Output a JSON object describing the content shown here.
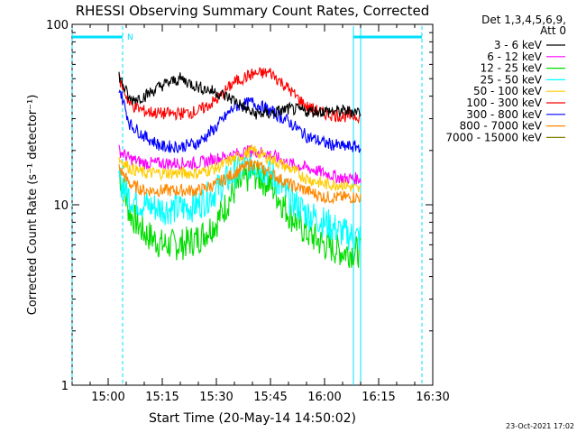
{
  "chart_data": {
    "type": "line",
    "title": "RHESSI Observing Summary Count Rates, Corrected",
    "xlabel": "Start Time (20-May-14 14:50:02)",
    "ylabel": "Corrected Count Rate (s⁻¹ detector⁻¹)",
    "xlim": [
      "14:50",
      "16:30"
    ],
    "ylim": [
      1,
      100
    ],
    "yscale": "log",
    "x_ticks": [
      "15:00",
      "15:15",
      "15:30",
      "15:45",
      "16:00",
      "16:15",
      "16:30"
    ],
    "y_ticks": [
      "1",
      "10",
      "100"
    ],
    "legend_header": [
      "Det 1,3,4,5,6,9,",
      "Att 0"
    ],
    "legend_position": "top-right",
    "timestamp": "23-Oct-2021 17:02",
    "annotations": [
      {
        "type": "night",
        "label": "N",
        "from": "14:50",
        "to": "15:04",
        "color": "#00e0ff"
      },
      {
        "type": "night",
        "label": "",
        "from": "16:08",
        "to": "16:27",
        "color": "#00e0ff"
      }
    ],
    "data_interval": [
      "15:03",
      "16:11"
    ],
    "series": [
      {
        "name": "3 - 6 keV",
        "color": "#000000",
        "points": [
          [
            "15:03",
            52
          ],
          [
            "15:06",
            38
          ],
          [
            "15:10",
            40
          ],
          [
            "15:15",
            46
          ],
          [
            "15:20",
            50
          ],
          [
            "15:25",
            45
          ],
          [
            "15:30",
            42
          ],
          [
            "15:35",
            38
          ],
          [
            "15:40",
            32
          ],
          [
            "15:45",
            32
          ],
          [
            "15:50",
            34
          ],
          [
            "15:55",
            33
          ],
          [
            "16:00",
            33
          ],
          [
            "16:05",
            33
          ],
          [
            "16:10",
            33
          ]
        ]
      },
      {
        "name": "6 - 12 keV",
        "color": "#ff00ff",
        "points": [
          [
            "15:03",
            20
          ],
          [
            "15:06",
            18
          ],
          [
            "15:10",
            17
          ],
          [
            "15:15",
            17
          ],
          [
            "15:20",
            17
          ],
          [
            "15:25",
            17
          ],
          [
            "15:30",
            18
          ],
          [
            "15:35",
            19
          ],
          [
            "15:40",
            20
          ],
          [
            "15:45",
            19
          ],
          [
            "15:50",
            17
          ],
          [
            "15:55",
            16
          ],
          [
            "16:00",
            15
          ],
          [
            "16:05",
            14
          ],
          [
            "16:10",
            14
          ]
        ]
      },
      {
        "name": "12 - 25 keV",
        "color": "#00dd00",
        "points": [
          [
            "15:03",
            15
          ],
          [
            "15:06",
            9
          ],
          [
            "15:10",
            7
          ],
          [
            "15:15",
            6
          ],
          [
            "15:20",
            6
          ],
          [
            "15:25",
            6.5
          ],
          [
            "15:30",
            8
          ],
          [
            "15:35",
            12
          ],
          [
            "15:40",
            15
          ],
          [
            "15:45",
            13
          ],
          [
            "15:50",
            9
          ],
          [
            "15:55",
            7
          ],
          [
            "16:00",
            6
          ],
          [
            "16:05",
            5.5
          ],
          [
            "16:10",
            5.5
          ]
        ]
      },
      {
        "name": "25 - 50 keV",
        "color": "#00ffff",
        "points": [
          [
            "15:03",
            14
          ],
          [
            "15:06",
            11
          ],
          [
            "15:10",
            10
          ],
          [
            "15:15",
            9.5
          ],
          [
            "15:20",
            9.5
          ],
          [
            "15:25",
            10
          ],
          [
            "15:30",
            12
          ],
          [
            "15:35",
            15
          ],
          [
            "15:40",
            17
          ],
          [
            "15:45",
            15
          ],
          [
            "15:50",
            11
          ],
          [
            "15:55",
            9
          ],
          [
            "16:00",
            8
          ],
          [
            "16:05",
            7
          ],
          [
            "16:10",
            6.5
          ]
        ]
      },
      {
        "name": "50 - 100 keV",
        "color": "#ffcc00",
        "points": [
          [
            "15:03",
            18
          ],
          [
            "15:06",
            16
          ],
          [
            "15:10",
            15
          ],
          [
            "15:15",
            15
          ],
          [
            "15:20",
            15
          ],
          [
            "15:25",
            15
          ],
          [
            "15:30",
            16
          ],
          [
            "15:35",
            18
          ],
          [
            "15:40",
            20
          ],
          [
            "15:45",
            18
          ],
          [
            "15:50",
            16
          ],
          [
            "15:55",
            14
          ],
          [
            "16:00",
            13
          ],
          [
            "16:05",
            13
          ],
          [
            "16:10",
            12
          ]
        ]
      },
      {
        "name": "100 - 300 keV",
        "color": "#ff0000",
        "points": [
          [
            "15:03",
            50
          ],
          [
            "15:06",
            36
          ],
          [
            "15:10",
            33
          ],
          [
            "15:15",
            32
          ],
          [
            "15:20",
            32
          ],
          [
            "15:25",
            33
          ],
          [
            "15:30",
            38
          ],
          [
            "15:35",
            48
          ],
          [
            "15:40",
            53
          ],
          [
            "15:45",
            54
          ],
          [
            "15:50",
            44
          ],
          [
            "15:55",
            35
          ],
          [
            "16:00",
            32
          ],
          [
            "16:05",
            31
          ],
          [
            "16:10",
            31
          ]
        ]
      },
      {
        "name": "300 - 800 keV",
        "color": "#0000ff",
        "points": [
          [
            "15:03",
            45
          ],
          [
            "15:06",
            28
          ],
          [
            "15:10",
            24
          ],
          [
            "15:15",
            21
          ],
          [
            "15:20",
            21
          ],
          [
            "15:25",
            22
          ],
          [
            "15:30",
            27
          ],
          [
            "15:35",
            35
          ],
          [
            "15:40",
            37
          ],
          [
            "15:45",
            33
          ],
          [
            "15:50",
            29
          ],
          [
            "15:55",
            24
          ],
          [
            "16:00",
            22
          ],
          [
            "16:05",
            21
          ],
          [
            "16:10",
            21
          ]
        ]
      },
      {
        "name": "800 - 7000 keV",
        "color": "#ff8800",
        "points": [
          [
            "15:03",
            16
          ],
          [
            "15:06",
            13
          ],
          [
            "15:10",
            12
          ],
          [
            "15:15",
            12
          ],
          [
            "15:20",
            12
          ],
          [
            "15:25",
            12
          ],
          [
            "15:30",
            13
          ],
          [
            "15:35",
            15
          ],
          [
            "15:40",
            17
          ],
          [
            "15:45",
            15
          ],
          [
            "15:50",
            13
          ],
          [
            "15:55",
            12
          ],
          [
            "16:00",
            11
          ],
          [
            "16:05",
            11
          ],
          [
            "16:10",
            11
          ]
        ]
      },
      {
        "name": "7000 - 15000 keV",
        "color": "#808000",
        "points": []
      }
    ]
  }
}
